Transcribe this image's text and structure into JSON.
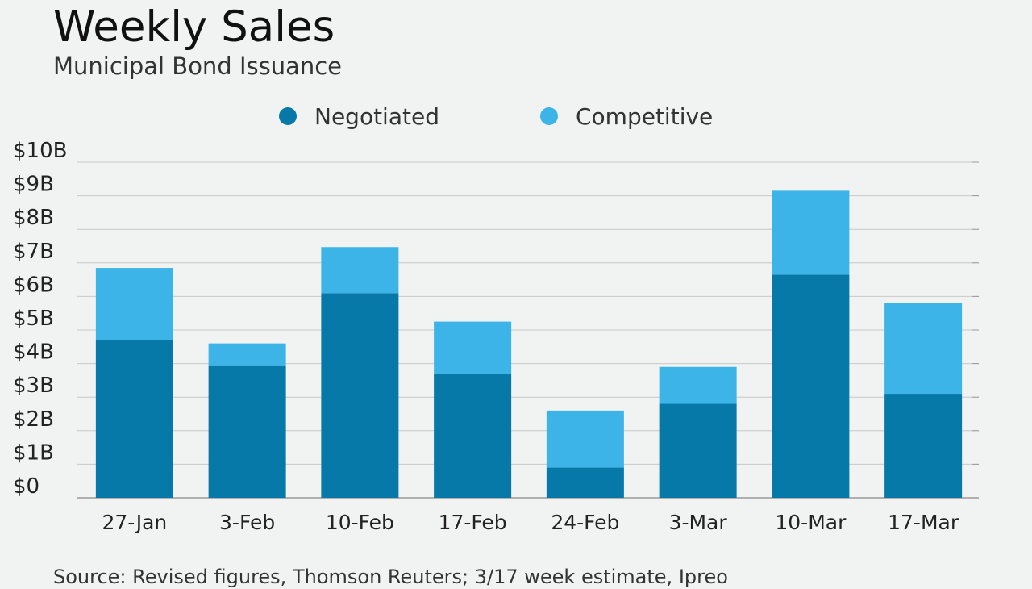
{
  "header": {
    "title": "Weekly Sales",
    "subtitle": "Municipal Bond Issuance"
  },
  "legend": {
    "placement": "top",
    "items": [
      {
        "label": "Negotiated",
        "color": "#0679a8"
      },
      {
        "label": "Competitive",
        "color": "#3db4e7"
      }
    ]
  },
  "chart_data": {
    "type": "bar",
    "stacked": true,
    "title": "Weekly Sales",
    "subtitle": "Municipal Bond Issuance",
    "categories": [
      "27-Jan",
      "3-Feb",
      "10-Feb",
      "17-Feb",
      "24-Feb",
      "3-Mar",
      "10-Mar",
      "17-Mar"
    ],
    "series": [
      {
        "name": "Negotiated",
        "color": "#0679a8",
        "values": [
          4.7,
          3.95,
          6.1,
          3.7,
          0.9,
          2.8,
          6.65,
          3.1
        ]
      },
      {
        "name": "Competitive",
        "color": "#3db4e7",
        "values": [
          2.15,
          0.65,
          1.37,
          1.55,
          1.7,
          1.1,
          2.5,
          2.7
        ]
      }
    ],
    "ylim": [
      0,
      10
    ],
    "yticks": [
      0,
      1,
      2,
      3,
      4,
      5,
      6,
      7,
      8,
      9,
      10
    ],
    "ytick_labels": [
      "$0",
      "$1B",
      "$2B",
      "$3B",
      "$4B",
      "$5B",
      "$6B",
      "$7B",
      "$8B",
      "$9B",
      "$10B"
    ],
    "grid": true,
    "xlabel": "",
    "ylabel": ""
  },
  "footer": {
    "source": "Source: Revised figures, Thomson Reuters; 3/17 week estimate, Ipreo"
  }
}
